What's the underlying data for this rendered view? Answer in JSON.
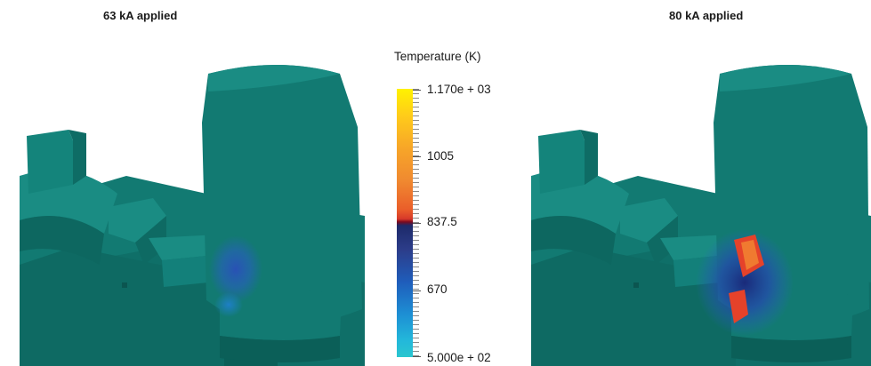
{
  "panels": {
    "left_title": "63 kA applied",
    "right_title": "80 kA applied"
  },
  "legend": {
    "title": "Temperature (K)",
    "ticks": [
      "1.170e + 03",
      "1005",
      "837.5",
      "670",
      "5.000e + 02"
    ]
  },
  "colors": {
    "part": "#127a72",
    "part_dark": "#0b5f58",
    "part_light": "#1a8c83",
    "hot": "#e5422a",
    "cool_glow": "#2646a8"
  }
}
